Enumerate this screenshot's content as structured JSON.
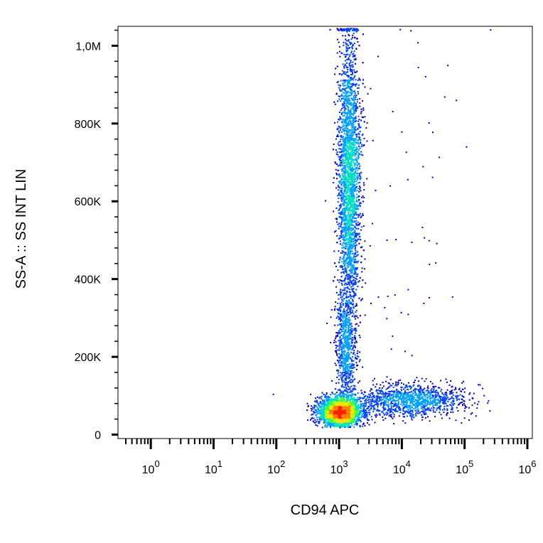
{
  "chart_data": {
    "type": "scatter",
    "style": "density-colored flow cytometry dot plot",
    "xlabel": "CD94 APC",
    "ylabel": "SS-A :: SS INT LIN",
    "x_scale": "log",
    "xlim": [
      0.3,
      1200000
    ],
    "ylim": [
      -10000,
      1050000
    ],
    "x_ticks": [
      {
        "value": 1,
        "base": "10",
        "exp": "0"
      },
      {
        "value": 10,
        "base": "10",
        "exp": "1"
      },
      {
        "value": 100,
        "base": "10",
        "exp": "2"
      },
      {
        "value": 1000,
        "base": "10",
        "exp": "3"
      },
      {
        "value": 10000,
        "base": "10",
        "exp": "4"
      },
      {
        "value": 100000,
        "base": "10",
        "exp": "5"
      },
      {
        "value": 1000000,
        "base": "10",
        "exp": "6"
      }
    ],
    "y_ticks": [
      {
        "value": 0,
        "label": "0"
      },
      {
        "value": 200000,
        "label": "200K"
      },
      {
        "value": 400000,
        "label": "400K"
      },
      {
        "value": 600000,
        "label": "600K"
      },
      {
        "value": 800000,
        "label": "800K"
      },
      {
        "value": 1000000,
        "label": "1,0M"
      }
    ],
    "density_colormap": [
      "#0000cc",
      "#0040ff",
      "#00a0ff",
      "#00e0c0",
      "#40ff40",
      "#c0ff00",
      "#ffe000",
      "#ff8000",
      "#ff2000"
    ],
    "populations": [
      {
        "name": "",
        "x_log_center": 3.0,
        "x_log_sd": 0.17,
        "y_center": 60000,
        "y_sd": 18000,
        "count": 2600
      },
      {
        "name": "",
        "x_log_center": 3.15,
        "x_log_sd": 0.09,
        "y_center": 650000,
        "y_sd": 190000,
        "count": 3800
      },
      {
        "name": "",
        "x_log_center": 3.1,
        "x_log_sd": 0.08,
        "y_center": 220000,
        "y_sd": 70000,
        "count": 700
      },
      {
        "name": "",
        "x_log_center": 4.1,
        "x_log_sd": 0.45,
        "y_center": 90000,
        "y_sd": 20000,
        "count": 1300
      },
      {
        "name": "",
        "x_log_center": 3.9,
        "x_log_sd": 0.6,
        "y_center": 500000,
        "y_sd": 300000,
        "count": 70
      }
    ]
  }
}
